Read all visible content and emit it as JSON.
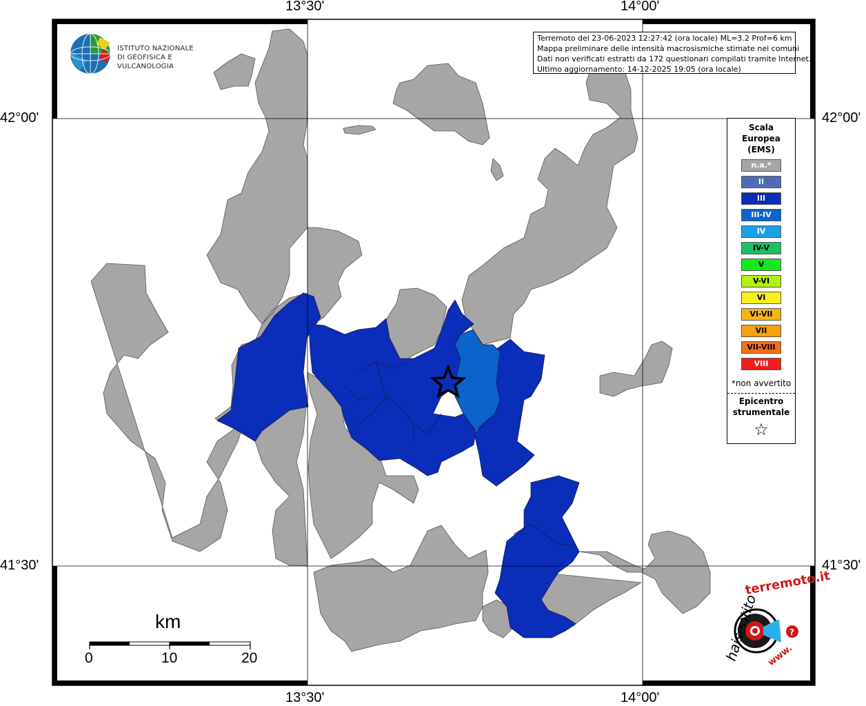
{
  "map_frame": {
    "ticks_top": [
      "13°30'",
      "14°00'"
    ],
    "ticks_bottom": [
      "13°30'",
      "14°00'"
    ],
    "ticks_left": [
      "42°00'",
      "41°30'"
    ],
    "ticks_right": [
      "42°00'",
      "41°30'"
    ]
  },
  "logo": {
    "line1": "ISTITUTO NAZIONALE",
    "line2": "DI GEOFISICA E VULCANOLOGIA"
  },
  "info": {
    "line1": "Terremoto del 23-06-2023 12:27:42 (ora locale) ML=3.2 Prof=6 km",
    "line2": "Mappa preliminare delle intensità macrosismiche stimate nei comuni",
    "line3": "Dati non verificati estratti da 172 questionari compilati tramite Internet.",
    "line4": "Ultimo aggiornamento: 14-12-2025 19:05 (ora locale)"
  },
  "legend": {
    "title1": "Scala",
    "title2": "Europea",
    "title3": "(EMS)",
    "items": [
      {
        "label": "n.a.*",
        "color": "#a6a6a6",
        "text_color": "#ffffff"
      },
      {
        "label": "II",
        "color": "#4d6bb8",
        "text_color": "#ffffff"
      },
      {
        "label": "III",
        "color": "#0a2dba",
        "text_color": "#ffffff"
      },
      {
        "label": "III-IV",
        "color": "#0a64cc",
        "text_color": "#ffffff"
      },
      {
        "label": "IV",
        "color": "#1ca0e6",
        "text_color": "#ffffff"
      },
      {
        "label": "IV-V",
        "color": "#18c060",
        "text_color": "#000000"
      },
      {
        "label": "V",
        "color": "#14e81e",
        "text_color": "#000000"
      },
      {
        "label": "V-VI",
        "color": "#b4f014",
        "text_color": "#000000"
      },
      {
        "label": "VI",
        "color": "#f8f01e",
        "text_color": "#000000"
      },
      {
        "label": "VI-VII",
        "color": "#f8b414",
        "text_color": "#000000"
      },
      {
        "label": "VII",
        "color": "#f8a010",
        "text_color": "#000000"
      },
      {
        "label": "VII-VIII",
        "color": "#f87014",
        "text_color": "#000000"
      },
      {
        "label": "VIII",
        "color": "#f01e1e",
        "text_color": "#ffffff"
      }
    ],
    "note": "*non avvertito",
    "epicenter1": "Epicentro",
    "epicenter2": "strumentale",
    "epicenter_symbol": "☆"
  },
  "scale_bar": {
    "unit": "km",
    "labels": [
      "0",
      "10",
      "20"
    ]
  },
  "colors": {
    "not_available": "#a6a6a6",
    "intensity_III": "#0a2dba",
    "intensity_III_IV": "#0a64cc"
  },
  "badge": {
    "text": "haisentitoilterremoto.it",
    "url_mark": "www."
  }
}
